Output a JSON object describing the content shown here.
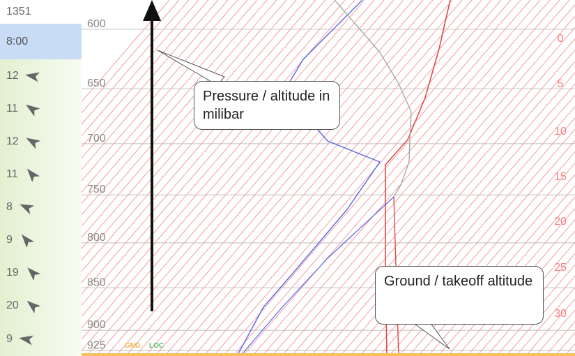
{
  "sidebar": {
    "altitude": "1351",
    "time": "8:00",
    "winds": [
      {
        "speed": "12",
        "direction_deg": 100
      },
      {
        "speed": "11",
        "direction_deg": 125
      },
      {
        "speed": "12",
        "direction_deg": 120
      },
      {
        "speed": "11",
        "direction_deg": 140
      },
      {
        "speed": "8",
        "direction_deg": 115
      },
      {
        "speed": "9",
        "direction_deg": 140
      },
      {
        "speed": "19",
        "direction_deg": 135
      },
      {
        "speed": "20",
        "direction_deg": 130
      },
      {
        "speed": "9",
        "direction_deg": 100
      }
    ]
  },
  "chart_data": {
    "type": "line",
    "pressure_levels": [
      "600",
      "650",
      "700",
      "750",
      "800",
      "850",
      "900",
      "925"
    ],
    "temperature_labels": [
      "0",
      "5",
      "10",
      "15",
      "20",
      "25",
      "30"
    ],
    "ground_labels": {
      "gnd": "GND",
      "loc": "LOC"
    },
    "colors": {
      "isotherm": "#f2a0a0",
      "isobar": "#cccccc",
      "temperature": "#e84848",
      "dewpoint": "#5a63e8",
      "parcel": "#a8a8a8",
      "ground": "#f5c060",
      "arrow": "#111111"
    }
  },
  "callouts": {
    "pressure": "Pressure / altitude in milibar",
    "ground": "Ground / takeoff altitude"
  }
}
